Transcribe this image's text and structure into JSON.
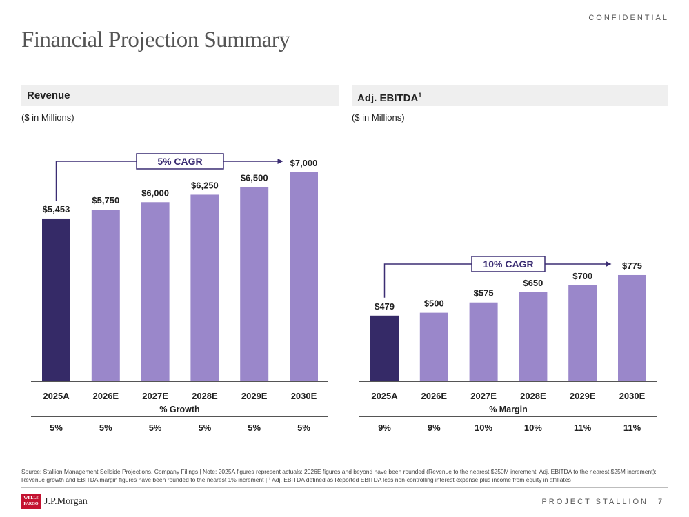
{
  "header": {
    "confidential": "CONFIDENTIAL",
    "title": "Financial Projection Summary"
  },
  "panels": {
    "revenue": {
      "title": "Revenue",
      "units": "($ in Millions)"
    },
    "ebitda": {
      "title": "Adj. EBITDA",
      "title_superscript": "1",
      "units": "($ in Millions)"
    }
  },
  "chart_data": [
    {
      "type": "bar",
      "title": "Revenue",
      "categories": [
        "2025A",
        "2026E",
        "2027E",
        "2028E",
        "2029E",
        "2030E"
      ],
      "values": [
        5453,
        5750,
        6000,
        6250,
        6500,
        7000
      ],
      "value_labels": [
        "$5,453",
        "$5,750",
        "$6,000",
        "$6,250",
        "$6,500",
        "$7,000"
      ],
      "ylim": [
        0,
        7300
      ],
      "annotation": "5% CAGR",
      "metric_label": "% Growth",
      "metric_values": [
        "5%",
        "5%",
        "5%",
        "5%",
        "5%",
        "5%"
      ],
      "colors": {
        "actual": "#352a67",
        "projected": "#9a87ca"
      }
    },
    {
      "type": "bar",
      "title": "Adj. EBITDA",
      "categories": [
        "2025A",
        "2026E",
        "2027E",
        "2028E",
        "2029E",
        "2030E"
      ],
      "values": [
        479,
        500,
        575,
        650,
        700,
        775
      ],
      "value_labels": [
        "$479",
        "$500",
        "$575",
        "$650",
        "$700",
        "$775"
      ],
      "ylim": [
        0,
        1590
      ],
      "annotation": "10% CAGR",
      "metric_label": "% Margin",
      "metric_values": [
        "9%",
        "9%",
        "10%",
        "10%",
        "11%",
        "11%"
      ],
      "colors": {
        "actual": "#352a67",
        "projected": "#9a87ca"
      }
    }
  ],
  "footer": {
    "footnote": "Source: Stallion Management Sellside Projections, Company Filings | Note: 2025A figures represent actuals; 2026E figures and beyond have been rounded (Revenue to the nearest $250M increment; Adj. EBITDA to the nearest $25M increment); Revenue growth and EBITDA margin figures have been rounded to the nearest 1% increment | ¹ Adj. EBITDA defined as Reported EBITDA less non-controlling interest expense plus income from equity in affiliates",
    "logo_wf": "WELLS FARGO",
    "logo_jpm": "J.P.Morgan",
    "project": "PROJECT STALLION",
    "page_number": "7"
  }
}
